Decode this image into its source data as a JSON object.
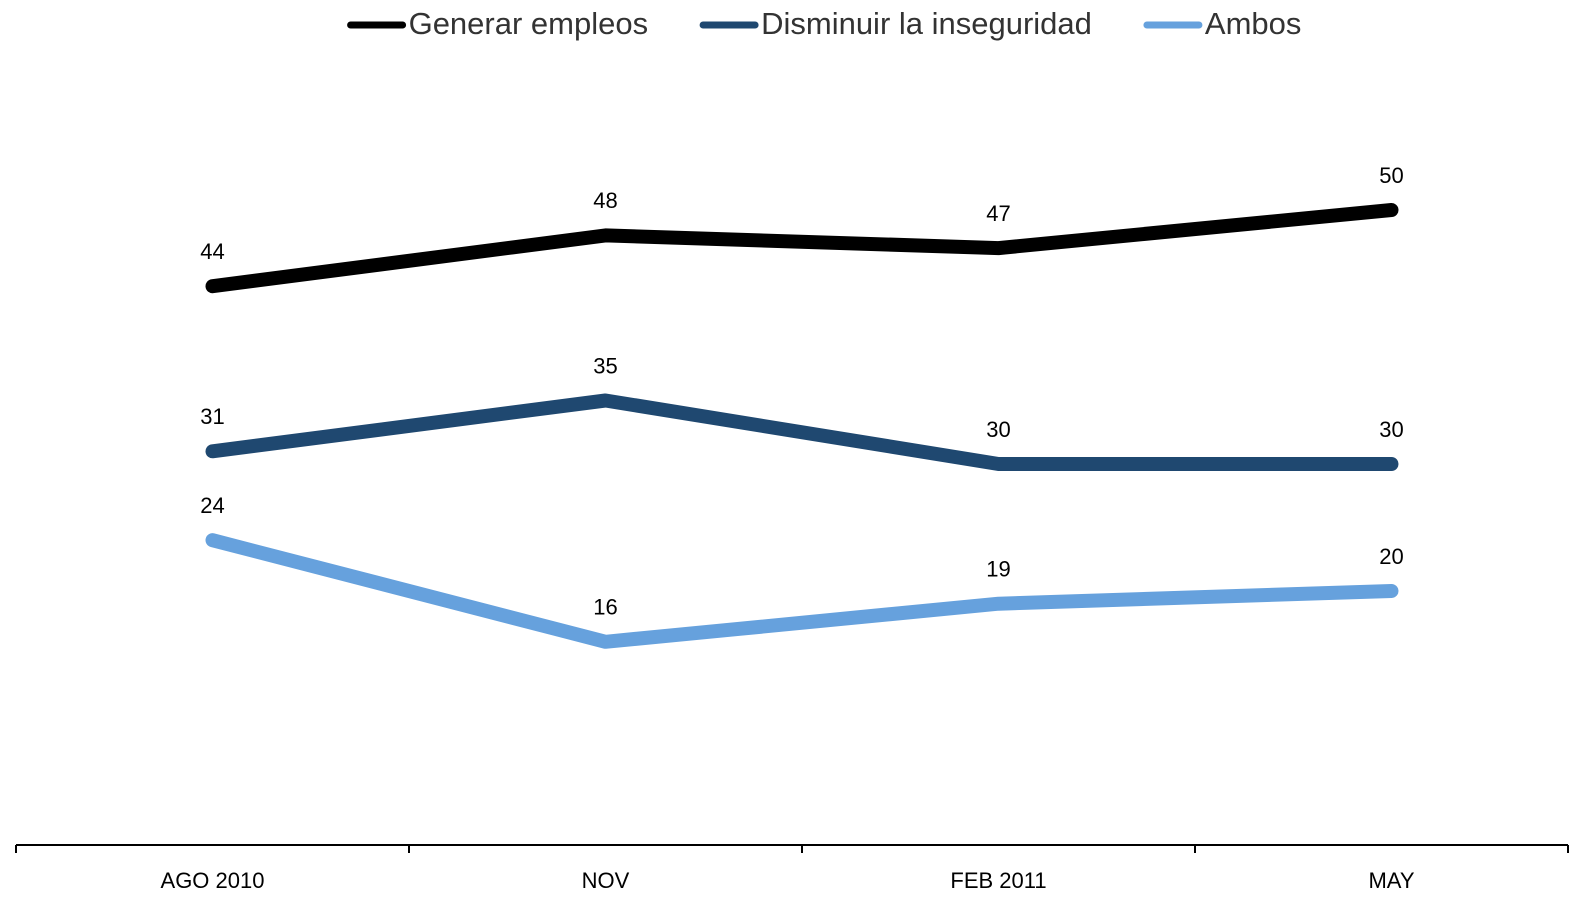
{
  "chart_data": {
    "type": "line",
    "categories": [
      "AGO 2010",
      "NOV",
      "FEB 2011",
      "MAY"
    ],
    "series": [
      {
        "name": "Generar empleos",
        "color": "#000000",
        "values": [
          44,
          48,
          47,
          50
        ]
      },
      {
        "name": "Disminuir la inseguridad",
        "color": "#1f4870",
        "values": [
          31,
          35,
          30,
          30
        ]
      },
      {
        "name": "Ambos",
        "color": "#66a1dd",
        "values": [
          24,
          16,
          19,
          20
        ]
      }
    ],
    "ylim": [
      0,
      60
    ],
    "legend": "top"
  }
}
